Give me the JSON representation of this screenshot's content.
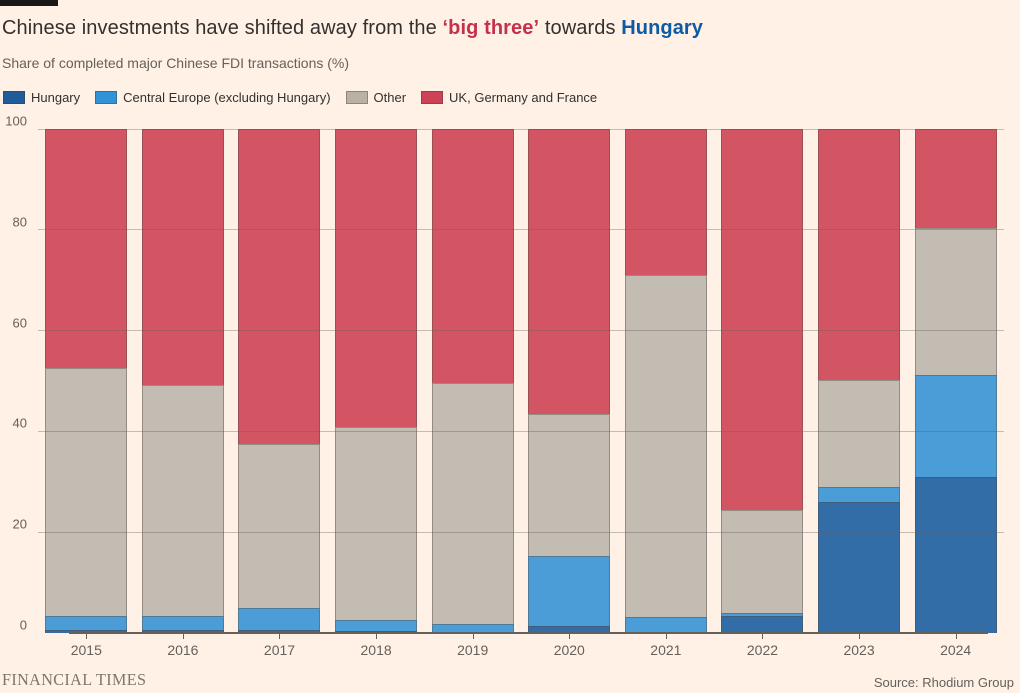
{
  "title": {
    "prefix": "Chinese investments have shifted away from the ",
    "highlight_red": "‘big three’",
    "middle": " towards ",
    "highlight_blue": "Hungary"
  },
  "subtitle": "Share of completed major Chinese FDI transactions (%)",
  "legend": [
    {
      "label": "Hungary",
      "color": "#1f5c99"
    },
    {
      "label": "Central Europe (excluding Hungary)",
      "color": "#2f93d6"
    },
    {
      "label": "Other",
      "color": "#b9b1a6"
    },
    {
      "label": "UK, Germany and France",
      "color": "#cc4257"
    }
  ],
  "chart_data": {
    "type": "bar",
    "subtype": "stacked_percent",
    "title": "Chinese investments have shifted away from the ‘big three’ towards Hungary",
    "xlabel": "",
    "ylabel": "Share of completed major Chinese FDI transactions (%)",
    "categories": [
      "2015",
      "2016",
      "2017",
      "2018",
      "2019",
      "2020",
      "2021",
      "2022",
      "2023",
      "2024"
    ],
    "series": [
      {
        "name": "Hungary",
        "color": "#336da7",
        "values": [
          0.5,
          0.5,
          0.6,
          0.4,
          0.3,
          1.3,
          0.2,
          3.3,
          25.9,
          30.9
        ]
      },
      {
        "name": "Central Europe (excluding Hungary)",
        "color": "#4a9dd6",
        "values": [
          2.8,
          2.8,
          4.4,
          2.1,
          1.5,
          13.9,
          2.9,
          0.7,
          3.1,
          20.3
        ]
      },
      {
        "name": "Other",
        "color": "#c3bcb3",
        "values": [
          49.3,
          46.0,
          32.6,
          38.3,
          47.9,
          28.2,
          68.0,
          20.5,
          21.3,
          29.1
        ]
      },
      {
        "name": "UK, Germany and France",
        "color": "#d35564",
        "values": [
          47.4,
          50.7,
          62.4,
          59.2,
          50.3,
          56.6,
          28.9,
          75.5,
          49.7,
          19.7
        ]
      }
    ],
    "ylim": [
      0,
      100
    ],
    "yticks": [
      0,
      20,
      40,
      60,
      80,
      100
    ],
    "grid": true,
    "gridlines_over_bars": true,
    "legend_position": "top",
    "stack_order": "bottom-to-top"
  },
  "footer": {
    "brand": "FINANCIAL TIMES",
    "source": "Source: Rhodium Group"
  },
  "colors": {
    "background": "#fff1e5",
    "title_red": "#c5304d",
    "title_blue": "#0d5ba6",
    "text_dark": "#33302e",
    "text_muted": "#66605b",
    "axis": "#66605b",
    "slug": "#1a1817"
  }
}
